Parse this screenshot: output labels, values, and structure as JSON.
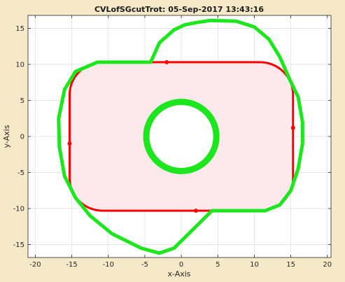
{
  "chart_data": {
    "type": "line",
    "title": "CVLofSGcutTrot: 05-Sep-2017 13:43:16",
    "xlabel": "x-Axis",
    "ylabel": "y-Axis",
    "xlim": [
      -21,
      20.5
    ],
    "ylim": [
      -16.8,
      16.8
    ],
    "xticks": [
      -20,
      -15,
      -10,
      -5,
      0,
      5,
      10,
      15,
      20
    ],
    "yticks": [
      -15,
      -10,
      -5,
      0,
      5,
      10,
      15
    ],
    "grid": true,
    "colors": {
      "figure_background": "#f5e9c8",
      "axes_background": "#ffffff",
      "grid": "#e6e6e6",
      "fill": "#fde8ec",
      "red": "#ff0000",
      "green": "#1ee61e"
    },
    "series": [
      {
        "kind": "filled-rounded-rectangle",
        "color": "#ff0000",
        "x_range": [
          -15.3,
          15.3
        ],
        "y_range": [
          -10.3,
          10.3
        ],
        "corner_radius": 4.5,
        "markers": [
          [
            -15.3,
            -1.0
          ],
          [
            15.3,
            1.2
          ],
          [
            -2.0,
            10.3
          ],
          [
            2.0,
            -10.3
          ]
        ]
      },
      {
        "kind": "outer-contour",
        "color": "#1ee61e",
        "points": [
          [
            -4.2,
            10.3
          ],
          [
            -11.5,
            10.3
          ],
          [
            -14.5,
            9.0
          ],
          [
            -16.0,
            6.5
          ],
          [
            -16.8,
            2.5
          ],
          [
            -16.7,
            -1.5
          ],
          [
            -16.0,
            -5.5
          ],
          [
            -14.5,
            -8.5
          ],
          [
            -12.5,
            -11.0
          ],
          [
            -9.5,
            -13.5
          ],
          [
            -5.5,
            -15.5
          ],
          [
            -3.0,
            -16.2
          ],
          [
            -1.0,
            -15.5
          ],
          [
            1.5,
            -13.0
          ],
          [
            4.2,
            -10.3
          ],
          [
            11.5,
            -10.3
          ],
          [
            13.5,
            -9.5
          ],
          [
            15.0,
            -7.5
          ],
          [
            16.0,
            -4.5
          ],
          [
            16.6,
            -1.0
          ],
          [
            16.6,
            2.0
          ],
          [
            16.0,
            5.5
          ],
          [
            14.8,
            8.0
          ],
          [
            13.5,
            11.0
          ],
          [
            12.0,
            13.5
          ],
          [
            10.0,
            15.2
          ],
          [
            7.5,
            16.0
          ],
          [
            4.0,
            16.1
          ],
          [
            2.0,
            15.8
          ],
          [
            0.5,
            15.5
          ],
          [
            -1.0,
            14.8
          ],
          [
            -3.0,
            13.0
          ],
          [
            -4.2,
            10.3
          ]
        ]
      },
      {
        "kind": "circle",
        "color": "#1ee61e",
        "center": [
          0.0,
          0.0
        ],
        "radius": 4.8
      }
    ]
  }
}
